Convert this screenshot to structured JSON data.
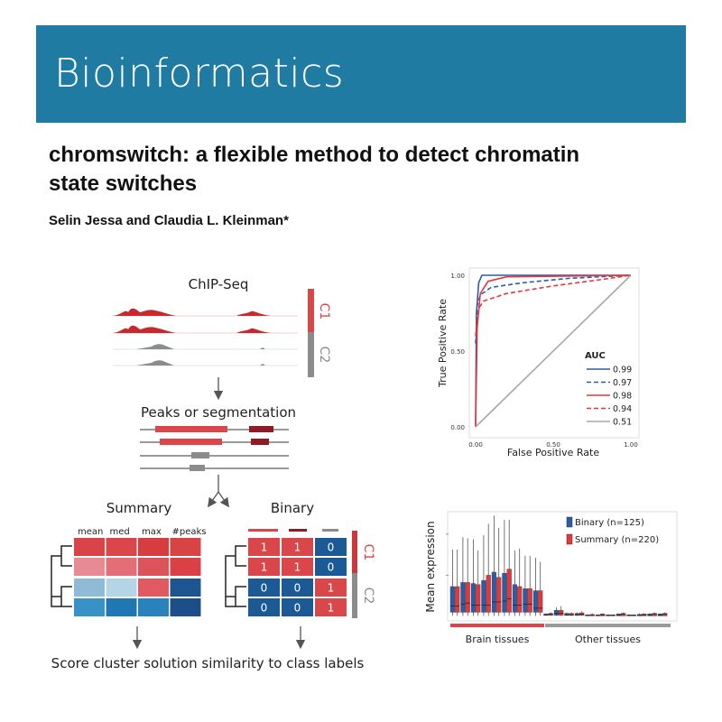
{
  "journal": "Bioinformatics",
  "article": {
    "title": "chromswitch: a flexible method to detect chromatin state switches",
    "authors": "Selin Jessa and Claudia L. Kleinman*"
  },
  "workflow": {
    "chipseq_label": "ChIP-Seq",
    "class1": "C1",
    "class2": "C2",
    "peaks_label": "Peaks or segmentation",
    "summary_label": "Summary",
    "binary_label": "Binary",
    "summary_columns": [
      "mean",
      "med",
      "max",
      "#peaks"
    ],
    "summary_colors": [
      [
        "#d84448",
        "#d9474a",
        "#d63c40",
        "#d84346"
      ],
      [
        "#e88a93",
        "#e46e75",
        "#dc5359",
        "#d94146"
      ],
      [
        "#8fbbd7",
        "#b3d5e6",
        "#e05a5f",
        "#1c5690"
      ],
      [
        "#3992c6",
        "#1f78b4",
        "#2a82bd",
        "#1c4f8a"
      ]
    ],
    "binary_values": [
      [
        "1",
        "1",
        "0"
      ],
      [
        "1",
        "1",
        "0"
      ],
      [
        "0",
        "0",
        "1"
      ],
      [
        "0",
        "0",
        "1"
      ]
    ],
    "score_label": "Score cluster solution similarity to class labels",
    "colors": {
      "red": "#d9474a",
      "dark_red": "#8e1b25",
      "blue": "#1c5a96",
      "grey": "#8c8c8c"
    }
  },
  "chart_data": [
    {
      "type": "line",
      "title": "",
      "xlabel": "False Positive Rate",
      "ylabel": "True Positive Rate",
      "xlim": [
        0,
        1
      ],
      "ylim": [
        0,
        1
      ],
      "xticks": [
        "0.00",
        "0.50",
        "1.00"
      ],
      "yticks": [
        "0.00",
        "0.50",
        "1.00"
      ],
      "legend_title": "AUC",
      "legend_position": "bottom-right",
      "series": [
        {
          "name": "0.99",
          "color": "#2a5caa",
          "dash": false,
          "points": [
            [
              0,
              0
            ],
            [
              0.005,
              0.75
            ],
            [
              0.02,
              0.95
            ],
            [
              0.04,
              1.0
            ],
            [
              1,
              1
            ]
          ]
        },
        {
          "name": "0.97",
          "color": "#2a5caa",
          "dash": true,
          "points": [
            [
              0,
              0.55
            ],
            [
              0.01,
              0.8
            ],
            [
              0.03,
              0.87
            ],
            [
              0.1,
              0.92
            ],
            [
              0.3,
              0.95
            ],
            [
              0.6,
              0.98
            ],
            [
              1,
              1
            ]
          ]
        },
        {
          "name": "0.98",
          "color": "#e2383c",
          "dash": false,
          "points": [
            [
              0,
              0
            ],
            [
              0.01,
              0.65
            ],
            [
              0.03,
              0.88
            ],
            [
              0.08,
              0.96
            ],
            [
              0.2,
              0.99
            ],
            [
              1,
              1
            ]
          ]
        },
        {
          "name": "0.94",
          "color": "#e2383c",
          "dash": true,
          "points": [
            [
              0,
              0.6
            ],
            [
              0.02,
              0.78
            ],
            [
              0.05,
              0.83
            ],
            [
              0.2,
              0.88
            ],
            [
              0.5,
              0.93
            ],
            [
              0.8,
              0.97
            ],
            [
              1,
              1
            ]
          ]
        },
        {
          "name": "0.51",
          "color": "#a8a8a8",
          "dash": false,
          "points": [
            [
              0,
              0
            ],
            [
              1,
              1
            ]
          ]
        }
      ]
    },
    {
      "type": "box",
      "ylabel": "Mean expression",
      "ylim": [
        0,
        10
      ],
      "series": [
        {
          "name": "Binary (n=125)",
          "color": "#2a5caa"
        },
        {
          "name": "Summary (n=220)",
          "color": "#e2383c"
        }
      ],
      "groups": [
        {
          "label": "Brain tissues",
          "color": "#d9474a",
          "count": 9
        },
        {
          "label": "Other tissues",
          "color": "#9a9a9a",
          "count": 12
        }
      ],
      "boxes": [
        [
          {
            "q1": 0.4,
            "median": 1.0,
            "q3": 2.9,
            "max": 6.5
          },
          {
            "q1": 0.4,
            "median": 1.0,
            "q3": 2.9,
            "max": 6.5
          }
        ],
        [
          {
            "q1": 0.4,
            "median": 1.2,
            "q3": 3.3,
            "max": 7.7
          },
          {
            "q1": 0.4,
            "median": 1.3,
            "q3": 3.3,
            "max": 7.6
          }
        ],
        [
          {
            "q1": 0.4,
            "median": 1.1,
            "q3": 3.2,
            "max": 7.5
          },
          {
            "q1": 0.4,
            "median": 1.1,
            "q3": 3.1,
            "max": 6.4
          }
        ],
        [
          {
            "q1": 0.4,
            "median": 1.1,
            "q3": 3.5,
            "max": 7.9
          },
          {
            "q1": 0.4,
            "median": 1.1,
            "q3": 4.0,
            "max": 9.0
          }
        ],
        [
          {
            "q1": 0.4,
            "median": 1.4,
            "q3": 4.3,
            "max": 9.8
          },
          {
            "q1": 0.4,
            "median": 1.4,
            "q3": 3.8,
            "max": 8.6
          }
        ],
        [
          {
            "q1": 0.4,
            "median": 1.5,
            "q3": 4.2,
            "max": 9.4
          },
          {
            "q1": 0.4,
            "median": 1.7,
            "q3": 4.6,
            "max": 9.4
          }
        ],
        [
          {
            "q1": 0.4,
            "median": 1.1,
            "q3": 3.1,
            "max": 6.4
          },
          {
            "q1": 0.4,
            "median": 1.1,
            "q3": 2.9,
            "max": 6.6
          }
        ],
        [
          {
            "q1": 0.4,
            "median": 1.2,
            "q3": 2.7,
            "max": 5.9
          },
          {
            "q1": 0.4,
            "median": 1.2,
            "q3": 2.7,
            "max": 5.9
          }
        ],
        [
          {
            "q1": 0.4,
            "median": 0.8,
            "q3": 2.5,
            "max": 5.7
          },
          {
            "q1": 0.4,
            "median": 0.8,
            "q3": 2.5,
            "max": 5.3
          }
        ],
        [
          {
            "q1": 0.1,
            "median": 0.15,
            "q3": 0.25,
            "max": 0.3
          },
          {
            "q1": 0.1,
            "median": 0.2,
            "q3": 0.3,
            "max": 0.4
          }
        ],
        [
          {
            "q1": 0.1,
            "median": 0.3,
            "q3": 0.6,
            "max": 0.9
          },
          {
            "q1": 0.1,
            "median": 0.3,
            "q3": 0.6,
            "max": 1.0
          }
        ],
        [
          {
            "q1": 0.1,
            "median": 0.15,
            "q3": 0.3,
            "max": 0.4
          },
          {
            "q1": 0.1,
            "median": 0.15,
            "q3": 0.3,
            "max": 0.4
          }
        ],
        [
          {
            "q1": 0.1,
            "median": 0.15,
            "q3": 0.3,
            "max": 0.4
          },
          {
            "q1": 0.1,
            "median": 0.2,
            "q3": 0.35,
            "max": 0.5
          }
        ],
        [
          {
            "q1": 0.05,
            "median": 0.1,
            "q3": 0.15,
            "max": 0.2
          },
          {
            "q1": 0.05,
            "median": 0.1,
            "q3": 0.2,
            "max": 0.3
          }
        ],
        [
          {
            "q1": 0.05,
            "median": 0.1,
            "q3": 0.15,
            "max": 0.2
          },
          {
            "q1": 0.05,
            "median": 0.15,
            "q3": 0.25,
            "max": 0.3
          }
        ],
        [
          {
            "q1": 0.05,
            "median": 0.1,
            "q3": 0.15,
            "max": 0.2
          },
          {
            "q1": 0.05,
            "median": 0.1,
            "q3": 0.15,
            "max": 0.2
          }
        ],
        [
          {
            "q1": 0.05,
            "median": 0.15,
            "q3": 0.25,
            "max": 0.3
          },
          {
            "q1": 0.05,
            "median": 0.2,
            "q3": 0.3,
            "max": 0.4
          }
        ],
        [
          {
            "q1": 0.05,
            "median": 0.1,
            "q3": 0.15,
            "max": 0.2
          },
          {
            "q1": 0.05,
            "median": 0.1,
            "q3": 0.15,
            "max": 0.2
          }
        ],
        [
          {
            "q1": 0.05,
            "median": 0.1,
            "q3": 0.2,
            "max": 0.3
          },
          {
            "q1": 0.05,
            "median": 0.15,
            "q3": 0.25,
            "max": 0.3
          }
        ],
        [
          {
            "q1": 0.05,
            "median": 0.15,
            "q3": 0.25,
            "max": 0.3
          },
          {
            "q1": 0.05,
            "median": 0.2,
            "q3": 0.3,
            "max": 0.4
          }
        ],
        [
          {
            "q1": 0.05,
            "median": 0.15,
            "q3": 0.25,
            "max": 0.3
          },
          {
            "q1": 0.05,
            "median": 0.2,
            "q3": 0.3,
            "max": 0.4
          }
        ]
      ]
    }
  ]
}
